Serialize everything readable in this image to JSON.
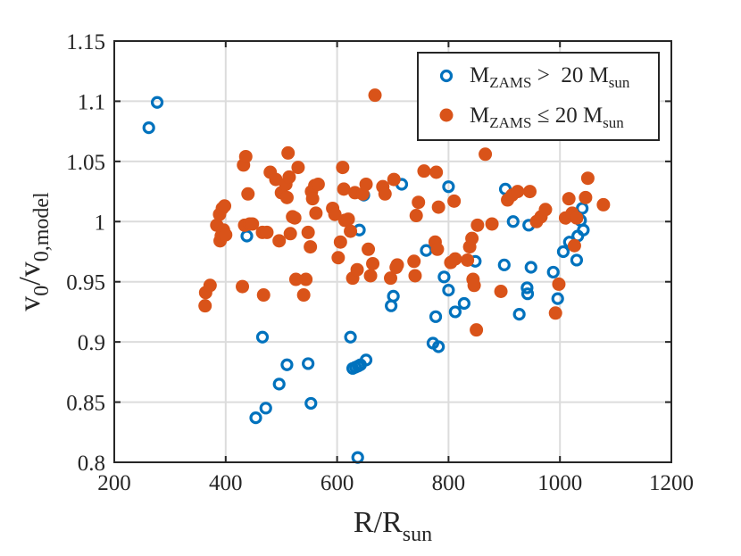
{
  "chart_data": {
    "type": "scatter",
    "title": "",
    "xlabel": {
      "main": "R/R",
      "sub": "sun"
    },
    "ylabel": {
      "main1": "v",
      "sub1": "0",
      "main2": "/v",
      "sub2": "0,model"
    },
    "xlim": [
      200,
      1200
    ],
    "ylim": [
      0.8,
      1.15
    ],
    "xticks": [
      200,
      400,
      600,
      800,
      1000,
      1200
    ],
    "xtick_labels": [
      "200",
      "400",
      "600",
      "800",
      "1000",
      "1200"
    ],
    "yticks": [
      0.8,
      0.85,
      0.9,
      0.95,
      1,
      1.05,
      1.1,
      1.15
    ],
    "ytick_labels": [
      "0.8",
      "0.85",
      "0.9",
      "0.95",
      "1",
      "1.05",
      "1.1",
      "1.15"
    ],
    "grid": true,
    "legend_position": "top-right",
    "colors": {
      "blue": "#0072BD",
      "orange": "#D95319",
      "axis": "#262626",
      "grid": "#dcdcdc"
    },
    "series": [
      {
        "name": "M_ZAMS > 20 M_sun",
        "legend_parts": {
          "m": "M",
          "msub": "ZAMS",
          "rel": " >  20 M",
          "sub": "sun"
        },
        "marker": "open-circle",
        "color": "#0072BD",
        "points": [
          [
            262,
            1.078
          ],
          [
            277,
            1.099
          ],
          [
            438,
            0.988
          ],
          [
            454,
            0.837
          ],
          [
            466,
            0.904
          ],
          [
            472,
            0.845
          ],
          [
            496,
            0.865
          ],
          [
            510,
            0.881
          ],
          [
            548,
            0.882
          ],
          [
            553,
            0.849
          ],
          [
            624,
            0.904
          ],
          [
            628,
            0.878
          ],
          [
            633,
            0.879
          ],
          [
            638,
            0.88
          ],
          [
            642,
            0.881
          ],
          [
            640,
            0.993
          ],
          [
            648,
            1.022
          ],
          [
            652,
            0.885
          ],
          [
            637,
            0.804
          ],
          [
            697,
            0.93
          ],
          [
            701,
            0.938
          ],
          [
            716,
            1.031
          ],
          [
            760,
            0.976
          ],
          [
            772,
            0.899
          ],
          [
            777,
            0.921
          ],
          [
            782,
            0.896
          ],
          [
            792,
            0.954
          ],
          [
            800,
            0.943
          ],
          [
            800,
            1.029
          ],
          [
            812,
            0.925
          ],
          [
            828,
            0.932
          ],
          [
            848,
            0.967
          ],
          [
            900,
            0.964
          ],
          [
            902,
            1.027
          ],
          [
            916,
            1.0
          ],
          [
            927,
            0.923
          ],
          [
            941,
            0.945
          ],
          [
            942,
            0.94
          ],
          [
            944,
            0.997
          ],
          [
            948,
            0.962
          ],
          [
            988,
            0.958
          ],
          [
            996,
            0.936
          ],
          [
            1006,
            0.975
          ],
          [
            1017,
            0.983
          ],
          [
            1030,
            0.968
          ],
          [
            1032,
            0.988
          ],
          [
            1037,
            1.001
          ],
          [
            1040,
            1.011
          ],
          [
            1042,
            0.993
          ]
        ]
      },
      {
        "name": "M_ZAMS ≤ 20 M_sun",
        "legend_parts": {
          "m": "M",
          "msub": "ZAMS",
          "rel": " ≤ 20 M",
          "sub": "sun"
        },
        "marker": "filled-circle",
        "color": "#D95319",
        "points": [
          [
            363,
            0.93
          ],
          [
            364,
            0.941
          ],
          [
            372,
            0.947
          ],
          [
            384,
            0.997
          ],
          [
            389,
            1.006
          ],
          [
            390,
            0.984
          ],
          [
            392,
            0.988
          ],
          [
            394,
            1.011
          ],
          [
            396,
            0.993
          ],
          [
            398,
            1.013
          ],
          [
            400,
            0.989
          ],
          [
            430,
            0.946
          ],
          [
            432,
            1.047
          ],
          [
            434,
            0.997
          ],
          [
            436,
            1.054
          ],
          [
            440,
            1.023
          ],
          [
            443,
            0.998
          ],
          [
            448,
            0.998
          ],
          [
            466,
            0.991
          ],
          [
            468,
            0.939
          ],
          [
            474,
            0.991
          ],
          [
            480,
            1.041
          ],
          [
            490,
            1.035
          ],
          [
            496,
            0.984
          ],
          [
            500,
            1.024
          ],
          [
            508,
            1.031
          ],
          [
            510,
            1.02
          ],
          [
            512,
            1.057
          ],
          [
            514,
            1.037
          ],
          [
            516,
            0.99
          ],
          [
            520,
            1.004
          ],
          [
            524,
            1.003
          ],
          [
            526,
            0.952
          ],
          [
            530,
            1.045
          ],
          [
            540,
            0.939
          ],
          [
            544,
            0.952
          ],
          [
            548,
            0.991
          ],
          [
            552,
            0.979
          ],
          [
            554,
            1.025
          ],
          [
            556,
            1.019
          ],
          [
            560,
            1.03
          ],
          [
            562,
            1.007
          ],
          [
            566,
            1.031
          ],
          [
            592,
            1.011
          ],
          [
            596,
            1.006
          ],
          [
            602,
            0.97
          ],
          [
            606,
            0.983
          ],
          [
            610,
            1.045
          ],
          [
            612,
            1.027
          ],
          [
            614,
            1.001
          ],
          [
            620,
            1.002
          ],
          [
            624,
            0.992
          ],
          [
            628,
            0.953
          ],
          [
            632,
            1.024
          ],
          [
            636,
            0.96
          ],
          [
            646,
            1.023
          ],
          [
            652,
            1.031
          ],
          [
            656,
            0.977
          ],
          [
            660,
            0.955
          ],
          [
            664,
            0.965
          ],
          [
            668,
            1.105
          ],
          [
            682,
            1.029
          ],
          [
            686,
            1.023
          ],
          [
            696,
            0.953
          ],
          [
            702,
            1.035
          ],
          [
            706,
            0.962
          ],
          [
            708,
            0.964
          ],
          [
            738,
            0.967
          ],
          [
            740,
            0.955
          ],
          [
            742,
            1.005
          ],
          [
            746,
            1.016
          ],
          [
            756,
            1.042
          ],
          [
            776,
            0.983
          ],
          [
            778,
            1.041
          ],
          [
            780,
            0.977
          ],
          [
            782,
            1.012
          ],
          [
            804,
            0.966
          ],
          [
            810,
            1.017
          ],
          [
            812,
            0.969
          ],
          [
            834,
            0.968
          ],
          [
            838,
            0.979
          ],
          [
            842,
            0.986
          ],
          [
            844,
            0.952
          ],
          [
            846,
            0.947
          ],
          [
            850,
            0.91
          ],
          [
            852,
            0.997
          ],
          [
            866,
            1.056
          ],
          [
            878,
            0.998
          ],
          [
            894,
            0.942
          ],
          [
            906,
            1.018
          ],
          [
            914,
            1.022
          ],
          [
            924,
            1.025
          ],
          [
            946,
            1.025
          ],
          [
            958,
            1.0
          ],
          [
            966,
            1.004
          ],
          [
            974,
            1.01
          ],
          [
            992,
            0.924
          ],
          [
            998,
            0.948
          ],
          [
            1010,
            1.003
          ],
          [
            1016,
            1.019
          ],
          [
            1022,
            1.007
          ],
          [
            1026,
            0.98
          ],
          [
            1030,
            1.003
          ],
          [
            1046,
            1.02
          ],
          [
            1050,
            1.036
          ],
          [
            1078,
            1.014
          ]
        ]
      }
    ]
  }
}
